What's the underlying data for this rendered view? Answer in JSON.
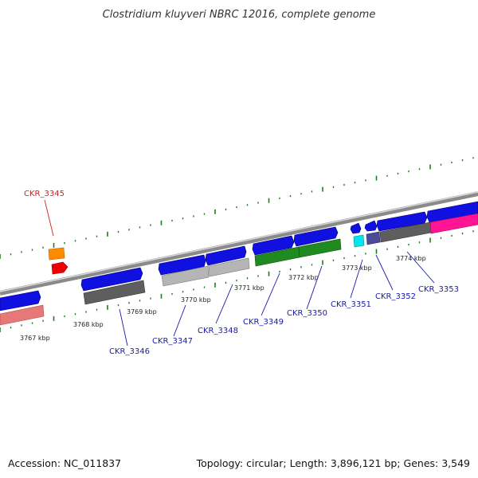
{
  "title": "Clostridium kluyveri NBRC 12016, complete genome",
  "footer": {
    "accession": "Accession: NC_011837",
    "summary": "Topology: circular; Length: 3,896,121 bp; Genes: 3,549"
  },
  "colors": {
    "backbone": "#8a8a8a",
    "backbone_highlight": "#d9d9d9",
    "tick": "#1e7d1e",
    "leader_dark": "#1a1aa8",
    "leader_red": "#cc2222",
    "label_dark": "#1a1aa8",
    "label_red": "#cc2222"
  },
  "kbp_labels": [
    "3767 kbp",
    "3768 kbp",
    "3769 kbp",
    "3770 kbp",
    "3771 kbp",
    "3772 kbp",
    "3773 kbp",
    "3774 kbp"
  ],
  "gene_labels": [
    {
      "id": "CKR_3345",
      "style": "red"
    },
    {
      "id": "CKR_3346",
      "style": "dark"
    },
    {
      "id": "CKR_3347",
      "style": "dark"
    },
    {
      "id": "CKR_3348",
      "style": "dark"
    },
    {
      "id": "CKR_3349",
      "style": "dark"
    },
    {
      "id": "CKR_3350",
      "style": "dark"
    },
    {
      "id": "CKR_3351",
      "style": "dark"
    },
    {
      "id": "CKR_3352",
      "style": "dark"
    },
    {
      "id": "CKR_3353",
      "style": "dark"
    }
  ],
  "features": [
    {
      "name": "cds-3345",
      "row": "upper-orange",
      "color": "#ff8c00"
    },
    {
      "name": "cds-3345b",
      "row": "upper-red",
      "color": "#ee0000"
    },
    {
      "name": "cds-3346",
      "row": "forward",
      "color": "#1010e0"
    },
    {
      "name": "cds-3347",
      "row": "forward",
      "color": "#1010e0"
    },
    {
      "name": "cds-3348",
      "row": "forward",
      "color": "#1010e0"
    },
    {
      "name": "cds-3349",
      "row": "forward",
      "color": "#1010e0"
    },
    {
      "name": "cds-3350",
      "row": "forward",
      "color": "#1010e0"
    },
    {
      "name": "cds-3351",
      "row": "forward",
      "color": "#1010e0"
    },
    {
      "name": "cds-3352",
      "row": "forward",
      "color": "#1010e0"
    },
    {
      "name": "cds-3353",
      "row": "forward",
      "color": "#1010e0"
    },
    {
      "name": "bar-pink-left",
      "row": "reverse",
      "color": "#e87878"
    },
    {
      "name": "bar-grey-1",
      "row": "reverse",
      "color": "#5e5e5e"
    },
    {
      "name": "bar-lightgrey-1",
      "row": "reverse",
      "color": "#b5b5b5"
    },
    {
      "name": "bar-lightgrey-2",
      "row": "reverse",
      "color": "#b5b5b5"
    },
    {
      "name": "bar-green-1",
      "row": "reverse",
      "color": "#1f8a1f"
    },
    {
      "name": "bar-green-2",
      "row": "reverse",
      "color": "#1f8a1f"
    },
    {
      "name": "bar-cyan",
      "row": "reverse",
      "color": "#00e5ee"
    },
    {
      "name": "bar-slate",
      "row": "reverse",
      "color": "#4b4b9a"
    },
    {
      "name": "bar-grey-2",
      "row": "reverse",
      "color": "#5e5e5e"
    },
    {
      "name": "bar-magenta",
      "row": "reverse",
      "color": "#ff1493"
    }
  ]
}
